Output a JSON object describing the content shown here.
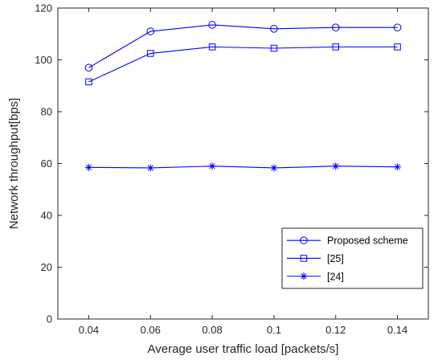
{
  "chart_data": {
    "type": "line",
    "xlabel": "Average user traffic load [packets/s]",
    "ylabel": "Network throughput[bps]",
    "x": [
      0.04,
      0.06,
      0.08,
      0.1,
      0.12,
      0.14
    ],
    "x_tick_labels": [
      "0.04",
      "0.06",
      "0.08",
      "0.1",
      "0.12",
      "0.14"
    ],
    "xlim": [
      0.03,
      0.15
    ],
    "ylim": [
      0,
      120
    ],
    "y_ticks": [
      0,
      20,
      40,
      60,
      80,
      100,
      120
    ],
    "grid": false,
    "legend_position": "bottom-right",
    "series_color": "#0000ff",
    "series": [
      {
        "name": "Proposed scheme",
        "marker": "circle",
        "values": [
          97,
          111,
          113.5,
          112,
          112.5,
          112.5
        ]
      },
      {
        "name": "[25]",
        "marker": "square",
        "values": [
          91.5,
          102.5,
          105,
          104.5,
          105,
          105
        ]
      },
      {
        "name": "[24]",
        "marker": "star",
        "values": [
          58.5,
          58.3,
          59,
          58.3,
          59,
          58.7
        ]
      }
    ]
  }
}
